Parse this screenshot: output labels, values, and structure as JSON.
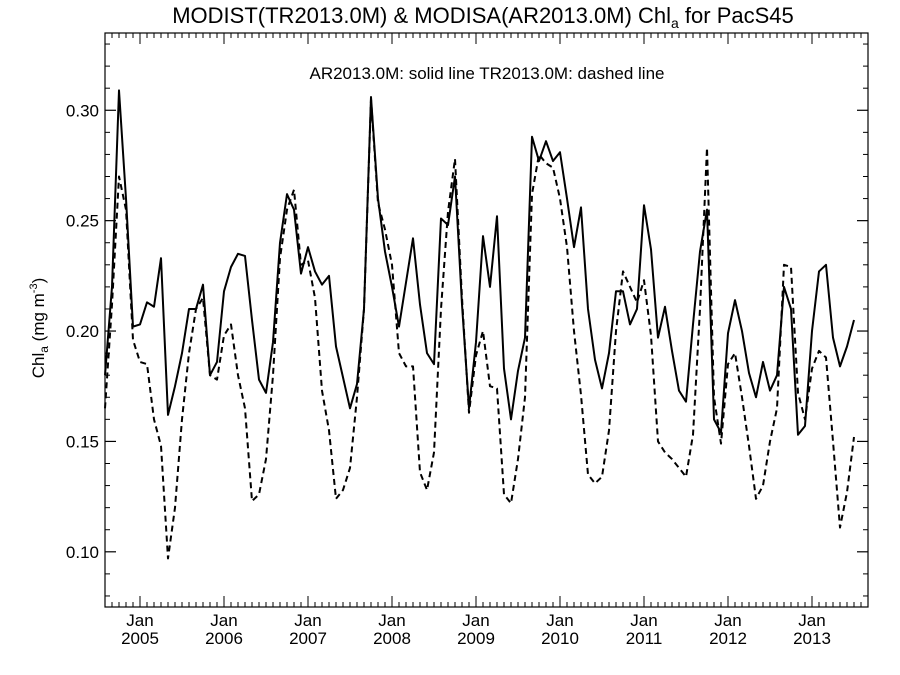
{
  "chart_data": {
    "type": "line",
    "title_main": "MODIST(TR2013.0M) & MODISA(AR2013.0M)  Chl",
    "title_sub": "a",
    "title_tail": " for PacS45",
    "annotation": "AR2013.0M: solid line   TR2013.0M: dashed line",
    "ylabel_main": "Chl",
    "ylabel_sub": "a",
    "ylabel_unit": " (mg m",
    "ylabel_exp": "-3",
    "ylabel_close": ")",
    "ylim": [
      0.075,
      0.335
    ],
    "xlim": [
      "2004-08",
      "2013-09"
    ],
    "yticks": [
      "0.10",
      "0.15",
      "0.20",
      "0.25",
      "0.30"
    ],
    "ytick_values": [
      0.1,
      0.15,
      0.2,
      0.25,
      0.3
    ],
    "xtick_month": "Jan",
    "xtick_years": [
      "2005",
      "2006",
      "2007",
      "2008",
      "2009",
      "2010",
      "2011",
      "2012",
      "2013"
    ],
    "grid": false,
    "legend": "none",
    "start_month": "2004-08",
    "series": [
      {
        "style": "solid",
        "values": [
          0.18,
          0.22,
          0.309,
          0.26,
          0.202,
          0.203,
          0.213,
          0.211,
          0.233,
          0.162,
          0.175,
          0.19,
          0.21,
          0.21,
          0.221,
          0.18,
          0.186,
          0.218,
          0.229,
          0.235,
          0.234,
          0.205,
          0.178,
          0.172,
          0.195,
          0.24,
          0.262,
          0.255,
          0.226,
          0.238,
          0.227,
          0.221,
          0.225,
          0.193,
          0.179,
          0.165,
          0.176,
          0.21,
          0.306,
          0.26,
          0.236,
          0.22,
          0.202,
          0.222,
          0.242,
          0.212,
          0.19,
          0.185,
          0.251,
          0.248,
          0.27,
          0.212,
          0.165,
          0.195,
          0.243,
          0.22,
          0.252,
          0.183,
          0.16,
          0.182,
          0.197,
          0.288,
          0.277,
          0.286,
          0.277,
          0.281,
          0.26,
          0.238,
          0.256,
          0.21,
          0.187,
          0.174,
          0.19,
          0.218,
          0.218,
          0.203,
          0.21,
          0.257,
          0.237,
          0.197,
          0.211,
          0.191,
          0.173,
          0.168,
          0.203,
          0.236,
          0.255,
          0.16,
          0.154,
          0.199,
          0.214,
          0.2,
          0.181,
          0.17,
          0.186,
          0.173,
          0.18,
          0.22,
          0.21,
          0.153,
          0.157,
          0.2,
          0.227,
          0.23,
          0.197,
          0.184,
          0.193,
          0.205
        ]
      },
      {
        "style": "dashed",
        "values": [
          0.165,
          0.212,
          0.27,
          0.255,
          0.196,
          0.186,
          0.185,
          0.16,
          0.148,
          0.097,
          0.12,
          0.16,
          0.19,
          0.21,
          0.215,
          0.18,
          0.178,
          0.198,
          0.203,
          0.18,
          0.165,
          0.123,
          0.126,
          0.142,
          0.18,
          0.233,
          0.255,
          0.264,
          0.23,
          0.232,
          0.215,
          0.173,
          0.155,
          0.124,
          0.128,
          0.138,
          0.17,
          0.21,
          0.305,
          0.258,
          0.246,
          0.23,
          0.19,
          0.184,
          0.184,
          0.136,
          0.128,
          0.145,
          0.21,
          0.254,
          0.278,
          0.215,
          0.163,
          0.189,
          0.2,
          0.175,
          0.174,
          0.126,
          0.122,
          0.142,
          0.17,
          0.262,
          0.28,
          0.276,
          0.274,
          0.26,
          0.238,
          0.2,
          0.171,
          0.135,
          0.131,
          0.134,
          0.155,
          0.2,
          0.227,
          0.22,
          0.213,
          0.223,
          0.198,
          0.15,
          0.145,
          0.142,
          0.138,
          0.134,
          0.153,
          0.21,
          0.283,
          0.17,
          0.149,
          0.185,
          0.19,
          0.17,
          0.148,
          0.124,
          0.13,
          0.15,
          0.165,
          0.23,
          0.229,
          0.172,
          0.16,
          0.183,
          0.191,
          0.188,
          0.15,
          0.111,
          0.127,
          0.152
        ]
      }
    ]
  }
}
